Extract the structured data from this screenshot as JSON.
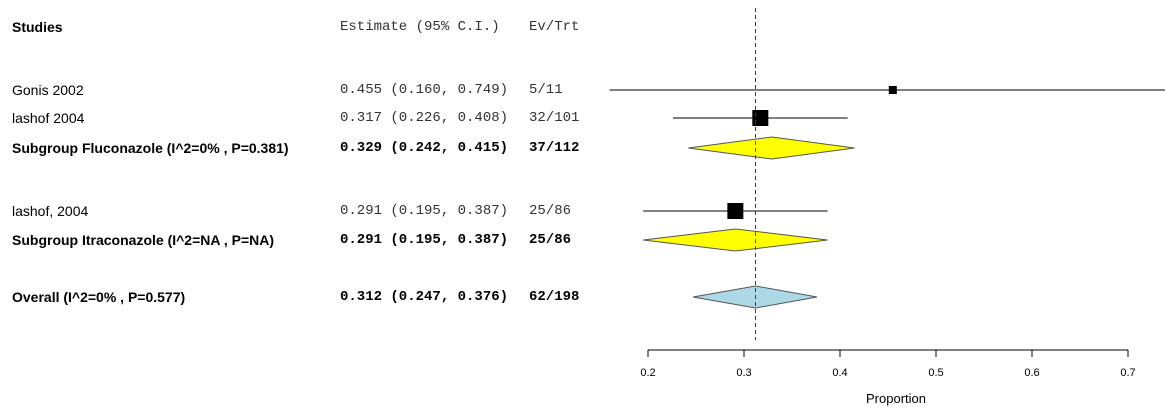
{
  "columns": {
    "studies": "Studies",
    "estimate": "Estimate (95% C.I.)",
    "events": "Ev/Trt"
  },
  "chart_data": {
    "type": "forest",
    "xlabel": "Proportion",
    "xlim": [
      0.2,
      0.7
    ],
    "xticks": [
      "0.2",
      "0.3",
      "0.4",
      "0.5",
      "0.6",
      "0.7"
    ],
    "reference_line": 0.312,
    "rows": [
      {
        "kind": "study",
        "label": "Gonis 2002",
        "estimate_text": "0.455 (0.160, 0.749)",
        "events_text": "5/11",
        "est": 0.455,
        "lo": 0.16,
        "hi": 0.749
      },
      {
        "kind": "study",
        "label": "lashof 2004",
        "estimate_text": "0.317 (0.226, 0.408)",
        "events_text": "32/101",
        "est": 0.317,
        "lo": 0.226,
        "hi": 0.408
      },
      {
        "kind": "subgroup",
        "label": "Subgroup Fluconazole (I^2=0% , P=0.381)",
        "estimate_text": "0.329 (0.242, 0.415)",
        "events_text": "37/112",
        "est": 0.329,
        "lo": 0.242,
        "hi": 0.415
      },
      {
        "kind": "study",
        "label": "lashof, 2004",
        "estimate_text": "0.291 (0.195, 0.387)",
        "events_text": "25/86",
        "est": 0.291,
        "lo": 0.195,
        "hi": 0.387
      },
      {
        "kind": "subgroup",
        "label": "Subgroup Itraconazole (I^2=NA , P=NA)",
        "estimate_text": "0.291 (0.195, 0.387)",
        "events_text": "25/86",
        "est": 0.291,
        "lo": 0.195,
        "hi": 0.387
      },
      {
        "kind": "overall",
        "label": "Overall (I^2=0% , P=0.577)",
        "estimate_text": "0.312 (0.247, 0.376)",
        "events_text": "62/198",
        "est": 0.312,
        "lo": 0.247,
        "hi": 0.376
      }
    ],
    "colors": {
      "subgroup_diamond": "#ffff00",
      "overall_diamond": "#add8e6",
      "reference_line": "#cc0000"
    }
  }
}
